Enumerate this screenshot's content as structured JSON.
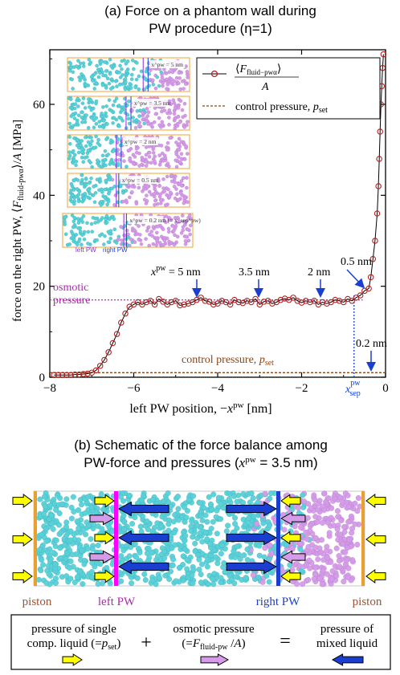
{
  "panel_a": {
    "title_line1": "(a) Force on a phantom wall during",
    "title_line2": "PW procedure (η=1)",
    "ylabel": "force on the right PW, ⟨F_fluid-pwα⟩/A [MPa]",
    "xlabel": "left PW position, −x^pw [nm]",
    "legend": {
      "series_label": "⟨F_fluid−pwα⟩ / A",
      "control_label": "control pressure, p_set"
    },
    "osmotic_label_1": "osmotic",
    "osmotic_label_2": "pressure",
    "control_pressure_label": "control pressure, p_set",
    "xsep_label": "x_sep^pw",
    "inset_strip_labels": [
      "x^pw = 5 nm",
      "x^pw = 3.5 nm",
      "x^pw = 2 nm",
      "x^pw = 0.5 nm",
      "x^pw = 0.2 nm (= x_sep^pw)"
    ],
    "inset_left_pw": "left PW",
    "inset_right_pw": "right PW",
    "arrow_labels": [
      {
        "text": "x^pw = 5 nm",
        "x": -5,
        "y": 17
      },
      {
        "text": "3.5 nm",
        "x": -3.5,
        "y": 17
      },
      {
        "text": "2 nm",
        "x": -2,
        "y": 17
      },
      {
        "text": "0.5 nm",
        "x": -0.5,
        "y": 19
      },
      {
        "text": "0.2 nm",
        "x": -0.2,
        "y": 1
      }
    ]
  },
  "chart_data": {
    "type": "line",
    "xlim": [
      -8,
      0
    ],
    "ylim": [
      0,
      72
    ],
    "xticks": [
      -8,
      -6,
      -4,
      -2,
      0
    ],
    "yticks": [
      0,
      20,
      40,
      60
    ],
    "control_pressure": 1.0,
    "osmotic_pressure": 17.0,
    "xsep": -0.2,
    "series": [
      {
        "x": [
          -7.9,
          -7.8,
          -7.7,
          -7.6,
          -7.5,
          -7.4,
          -7.3,
          -7.2,
          -7.1,
          -7.0,
          -6.9,
          -6.8,
          -6.7,
          -6.6,
          -6.5,
          -6.4,
          -6.3,
          -6.2,
          -6.1,
          -6.0,
          -5.9,
          -5.8,
          -5.7,
          -5.6,
          -5.5,
          -5.4,
          -5.3,
          -5.2,
          -5.1,
          -5.0,
          -4.9,
          -4.8,
          -4.7,
          -4.6,
          -4.5,
          -4.4,
          -4.3,
          -4.2,
          -4.1,
          -4.0,
          -3.9,
          -3.8,
          -3.7,
          -3.6,
          -3.5,
          -3.4,
          -3.3,
          -3.2,
          -3.1,
          -3.0,
          -2.9,
          -2.8,
          -2.7,
          -2.6,
          -2.5,
          -2.4,
          -2.3,
          -2.2,
          -2.1,
          -2.0,
          -1.9,
          -1.8,
          -1.7,
          -1.6,
          -1.5,
          -1.4,
          -1.3,
          -1.2,
          -1.1,
          -1.0,
          -0.9,
          -0.8,
          -0.7,
          -0.6,
          -0.5,
          -0.4,
          -0.35,
          -0.3,
          -0.25,
          -0.2,
          -0.17,
          -0.15,
          -0.13,
          -0.11,
          -0.09,
          -0.07,
          -0.05
        ],
        "y": [
          0.5,
          0.5,
          0.5,
          0.5,
          0.5,
          0.6,
          0.6,
          0.7,
          0.8,
          1.0,
          1.5,
          2.5,
          3.8,
          5.5,
          7.5,
          9.5,
          12.0,
          14.0,
          15.5,
          16.0,
          16.5,
          16.0,
          16.5,
          16.8,
          16.0,
          17.2,
          16.6,
          16.0,
          16.5,
          16.8,
          15.8,
          16.0,
          16.2,
          16.5,
          17.0,
          17.5,
          16.8,
          16.6,
          16.0,
          16.2,
          16.8,
          16.5,
          16.0,
          17.0,
          16.5,
          16.3,
          16.8,
          16.5,
          17.2,
          16.0,
          16.6,
          16.8,
          16.2,
          16.5,
          17.0,
          17.3,
          17.0,
          17.5,
          16.8,
          16.4,
          16.8,
          16.5,
          16.8,
          16.0,
          16.5,
          16.2,
          16.5,
          17.0,
          16.8,
          16.5,
          17.2,
          16.8,
          17.5,
          18.0,
          19.0,
          19.5,
          22.0,
          26.0,
          30.0,
          36.0,
          42.0,
          48.0,
          54.0,
          60.0,
          64.0,
          68.0,
          71.0
        ]
      }
    ]
  },
  "panel_b": {
    "title_line1": "(b) Schematic of the force balance among",
    "title_line2": "PW-force and pressures (x^pw = 3.5 nm)",
    "piston_left": "piston",
    "piston_right": "piston",
    "left_pw": "left PW",
    "right_pw": "right PW",
    "legend_single_1": "pressure of single",
    "legend_single_2": "comp. liquid (=p_set)",
    "legend_osmotic_1": "osmotic pressure",
    "legend_osmotic_2": "(=F_fluid-pw /A)",
    "legend_mixed_1": "pressure of",
    "legend_mixed_2": "mixed liquid",
    "plus": "+",
    "equals": "="
  },
  "colors": {
    "series": "#b22222",
    "control": "#8b4513",
    "osmotic": "#cc33cc",
    "blue": "#1a3fd0",
    "cyan": "#5ad0d8",
    "pink": "#d69be8",
    "yellow": "#ffff00",
    "orange": "#e8a030",
    "magenta": "#ff00ff"
  }
}
